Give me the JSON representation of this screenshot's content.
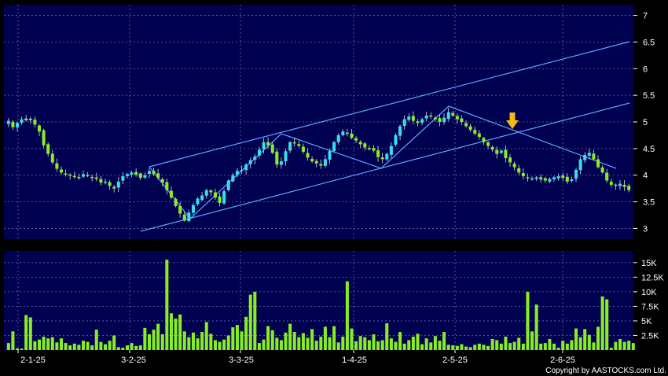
{
  "chart_data": [
    {
      "type": "candlestick",
      "title": "",
      "ylim": [
        2.8,
        7.2
      ],
      "y_ticks": [
        "3",
        "3.5",
        "4",
        "4.5",
        "5",
        "5.5",
        "6",
        "6.5",
        "7"
      ],
      "x_tick_labels": [
        "2-1-25",
        "3-2-25",
        "3-3-25",
        "1-4-25",
        "2-5-25",
        "2-6-25"
      ],
      "grid": true,
      "up_color": "#33e0f0",
      "down_color": "#88ee22",
      "closes": [
        5.02,
        4.9,
        4.98,
        5.05,
        5.03,
        5.06,
        4.95,
        4.82,
        4.56,
        4.4,
        4.24,
        4.12,
        4.05,
        4.02,
        4.0,
        3.98,
        3.96,
        4.02,
        3.99,
        3.95,
        3.93,
        3.86,
        3.88,
        3.8,
        3.75,
        3.88,
        3.98,
        4.02,
        4.05,
        4.01,
        3.95,
        4.0,
        4.08,
        4.02,
        3.95,
        3.86,
        3.72,
        3.58,
        3.42,
        3.28,
        3.15,
        3.3,
        3.44,
        3.56,
        3.62,
        3.72,
        3.68,
        3.58,
        3.48,
        3.7,
        3.9,
        4.0,
        4.08,
        4.1,
        4.2,
        4.28,
        4.35,
        4.48,
        4.62,
        4.56,
        4.42,
        4.2,
        4.26,
        4.45,
        4.62,
        4.6,
        4.55,
        4.44,
        4.33,
        4.26,
        4.22,
        4.18,
        4.3,
        4.45,
        4.62,
        4.75,
        4.82,
        4.78,
        4.7,
        4.65,
        4.58,
        4.52,
        4.5,
        4.46,
        4.34,
        4.3,
        4.4,
        4.55,
        4.75,
        4.92,
        5.05,
        5.1,
        5.02,
        4.98,
        5.05,
        5.12,
        5.1,
        5.05,
        5.0,
        5.08,
        5.18,
        5.12,
        5.05,
        5.0,
        4.92,
        4.85,
        4.78,
        4.72,
        4.62,
        4.55,
        4.48,
        4.4,
        4.46,
        4.32,
        4.24,
        4.15,
        4.05,
        3.98,
        3.95,
        3.94,
        3.96,
        3.92,
        3.9,
        3.93,
        3.96,
        3.98,
        3.95,
        3.88,
        3.92,
        4.1,
        4.3,
        4.38,
        4.42,
        4.3,
        4.15,
        4.05,
        3.9,
        3.82,
        3.8,
        3.84,
        3.78,
        3.72
      ],
      "volumes": [
        1200,
        3200,
        300,
        250,
        6000,
        5600,
        1500,
        1800,
        2300,
        2000,
        2200,
        1300,
        2000,
        1200,
        800,
        1100,
        900,
        1600,
        1400,
        800,
        3500,
        1400,
        1000,
        1600,
        2500,
        500,
        400,
        800,
        1200,
        700,
        800,
        3800,
        2700,
        3500,
        4500,
        2700,
        15500,
        6300,
        5400,
        6100,
        3200,
        2200,
        3000,
        2000,
        3100,
        4800,
        2800,
        1700,
        1400,
        1800,
        2500,
        3900,
        4300,
        3200,
        5700,
        9500,
        10000,
        1200,
        1800,
        4100,
        3400,
        2100,
        1700,
        3000,
        4500,
        3100,
        2200,
        2900,
        2100,
        3600,
        1600,
        2300,
        4000,
        2200,
        4100,
        1300,
        2300,
        11800,
        3700,
        1500,
        2400,
        2200,
        1700,
        2700,
        1500,
        1700,
        4600,
        2000,
        1400,
        3100,
        1100,
        1700,
        2300,
        2800,
        1000,
        2000,
        1300,
        2400,
        1600,
        3100,
        900,
        800,
        700,
        1000,
        600,
        500,
        900,
        1100,
        900,
        700,
        1900,
        1700,
        1100,
        2300,
        1200,
        1400,
        2100,
        1100,
        10000,
        3200,
        7800,
        1100,
        1200,
        1900,
        1100,
        400,
        1600,
        1100,
        1700,
        3700,
        2200,
        3600,
        2600,
        1300,
        4000,
        9200,
        8700,
        400,
        1400,
        1900,
        1400,
        1600,
        1200
      ],
      "volume_ylim": [
        0,
        17000
      ],
      "volume_ticks": [
        "2.5K",
        "5K",
        "7.5K",
        "10K",
        "12.5K",
        "15K"
      ],
      "trendlines": "channel lines and zigzag pattern drawn over price",
      "annotation": "arrow marker near 2-5-25"
    }
  ],
  "footer": {
    "copyright": "Copyright by AASTOCKS.com Ltd."
  }
}
